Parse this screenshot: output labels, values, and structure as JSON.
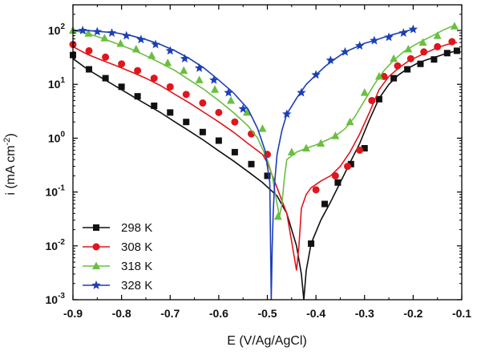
{
  "chart_data": {
    "type": "line",
    "xlabel": "E (V/Ag/AgCl)",
    "ylabel_prefix": "i (mA cm",
    "ylabel_sup": "-2",
    "ylabel_suffix": ")",
    "xlim": [
      -0.9,
      -0.1
    ],
    "ylim": [
      0.001,
      300
    ],
    "y_scale": "log",
    "x_ticks": [
      -0.9,
      -0.8,
      -0.7,
      -0.6,
      -0.5,
      -0.4,
      -0.3,
      -0.2,
      -0.1
    ],
    "x_tick_labels": [
      "-0.9",
      "-0.8",
      "-0.7",
      "-0.6",
      "-0.5",
      "-0.4",
      "-0.3",
      "-0.2",
      "-0.1"
    ],
    "y_ticks": [
      {
        "value": 0.001,
        "base": "10",
        "exp": "-3"
      },
      {
        "value": 0.01,
        "base": "10",
        "exp": "-2"
      },
      {
        "value": 0.1,
        "base": "10",
        "exp": "-1"
      },
      {
        "value": 1,
        "base": "10",
        "exp": "0"
      },
      {
        "value": 10,
        "base": "10",
        "exp": "1"
      },
      {
        "value": 100,
        "base": "10",
        "exp": "2"
      }
    ],
    "legend_position": "bottom-left",
    "series": [
      {
        "name": "298 K",
        "color": "#111111",
        "marker": "square",
        "x": [
          -0.9,
          -0.87,
          -0.84,
          -0.81,
          -0.78,
          -0.75,
          -0.72,
          -0.69,
          -0.66,
          -0.63,
          -0.6,
          -0.57,
          -0.54,
          -0.51,
          -0.48,
          -0.46,
          -0.44,
          -0.43,
          -0.425,
          -0.42,
          -0.41,
          -0.39,
          -0.37,
          -0.35,
          -0.33,
          -0.31,
          -0.29,
          -0.27,
          -0.25,
          -0.23,
          -0.21,
          -0.19,
          -0.17,
          -0.15,
          -0.13,
          -0.11
        ],
        "y": [
          30,
          19,
          13,
          9,
          6.2,
          4.3,
          3.0,
          2.0,
          1.35,
          0.9,
          0.58,
          0.38,
          0.24,
          0.15,
          0.085,
          0.04,
          0.01,
          0.003,
          0.001,
          0.0035,
          0.011,
          0.03,
          0.065,
          0.15,
          0.35,
          0.8,
          2.2,
          5.5,
          10,
          15,
          20,
          25,
          29,
          33,
          38,
          42
        ],
        "marker_x": [
          -0.9,
          -0.867,
          -0.833,
          -0.8,
          -0.767,
          -0.733,
          -0.7,
          -0.667,
          -0.633,
          -0.6,
          -0.567,
          -0.533,
          -0.5,
          -0.41,
          -0.382,
          -0.355,
          -0.328,
          -0.3,
          -0.27,
          -0.24,
          -0.212,
          -0.185,
          -0.157,
          -0.13,
          -0.11
        ],
        "marker_y": [
          35,
          19,
          13,
          9,
          6,
          4,
          3,
          2,
          1.3,
          0.9,
          0.55,
          0.33,
          0.2,
          0.011,
          0.06,
          0.15,
          0.33,
          0.65,
          5.3,
          13,
          19,
          24,
          29,
          38,
          42
        ]
      },
      {
        "name": "308 K",
        "color": "#e0161c",
        "marker": "circle",
        "x": [
          -0.9,
          -0.87,
          -0.84,
          -0.81,
          -0.78,
          -0.75,
          -0.72,
          -0.69,
          -0.66,
          -0.63,
          -0.6,
          -0.57,
          -0.54,
          -0.51,
          -0.5,
          -0.48,
          -0.46,
          -0.45,
          -0.44,
          -0.435,
          -0.43,
          -0.42,
          -0.41,
          -0.39,
          -0.37,
          -0.35,
          -0.33,
          -0.31,
          -0.29,
          -0.27,
          -0.25,
          -0.23,
          -0.21,
          -0.19,
          -0.17,
          -0.15,
          -0.13,
          -0.11
        ],
        "y": [
          50,
          36,
          28,
          22,
          17,
          13,
          9.5,
          6.5,
          4.5,
          3.0,
          2.0,
          1.3,
          0.8,
          0.5,
          0.35,
          0.12,
          0.04,
          0.012,
          0.0035,
          0.01,
          0.05,
          0.09,
          0.12,
          0.16,
          0.2,
          0.3,
          0.55,
          1.2,
          3.0,
          8,
          14,
          20,
          27,
          33,
          40,
          48,
          55,
          60
        ],
        "marker_x": [
          -0.9,
          -0.867,
          -0.833,
          -0.8,
          -0.767,
          -0.733,
          -0.7,
          -0.667,
          -0.633,
          -0.6,
          -0.567,
          -0.533,
          -0.5,
          -0.4,
          -0.36,
          -0.335,
          -0.31,
          -0.285,
          -0.26,
          -0.232,
          -0.205,
          -0.178,
          -0.15,
          -0.12
        ],
        "marker_y": [
          55,
          42,
          32,
          24,
          18,
          13,
          9,
          6.5,
          4.5,
          3,
          2,
          1.2,
          0.5,
          0.11,
          0.2,
          0.3,
          0.6,
          5,
          14,
          22,
          30,
          40,
          50,
          62
        ]
      },
      {
        "name": "318 K",
        "color": "#6abf3f",
        "marker": "triangle",
        "x": [
          -0.9,
          -0.87,
          -0.84,
          -0.81,
          -0.78,
          -0.75,
          -0.72,
          -0.69,
          -0.66,
          -0.63,
          -0.6,
          -0.57,
          -0.54,
          -0.52,
          -0.5,
          -0.49,
          -0.48,
          -0.475,
          -0.47,
          -0.465,
          -0.46,
          -0.44,
          -0.42,
          -0.4,
          -0.38,
          -0.36,
          -0.34,
          -0.32,
          -0.3,
          -0.28,
          -0.26,
          -0.24,
          -0.22,
          -0.2,
          -0.18,
          -0.16,
          -0.14,
          -0.12
        ],
        "y": [
          100,
          88,
          72,
          57,
          45,
          34,
          25,
          18,
          12,
          8,
          5,
          3,
          1.7,
          1.0,
          0.4,
          0.2,
          0.06,
          0.035,
          0.06,
          0.18,
          0.4,
          0.55,
          0.65,
          0.75,
          0.9,
          1.1,
          1.5,
          2.5,
          5,
          10,
          18,
          28,
          40,
          52,
          65,
          80,
          100,
          120
        ],
        "marker_x": [
          -0.9,
          -0.868,
          -0.835,
          -0.802,
          -0.77,
          -0.738,
          -0.705,
          -0.672,
          -0.64,
          -0.608,
          -0.575,
          -0.542,
          -0.51,
          -0.478,
          -0.45,
          -0.42,
          -0.39,
          -0.36,
          -0.33,
          -0.3,
          -0.27,
          -0.24,
          -0.21,
          -0.18,
          -0.15,
          -0.115
        ],
        "marker_y": [
          100,
          88,
          72,
          57,
          45,
          34,
          25,
          18,
          12,
          8,
          5,
          3,
          1.5,
          0.035,
          0.55,
          0.65,
          0.8,
          1.1,
          2,
          7,
          14,
          30,
          45,
          60,
          80,
          120
        ]
      },
      {
        "name": "328 K",
        "color": "#1c3fb5",
        "marker": "star",
        "x": [
          -0.9,
          -0.87,
          -0.84,
          -0.81,
          -0.78,
          -0.75,
          -0.72,
          -0.69,
          -0.66,
          -0.63,
          -0.6,
          -0.57,
          -0.54,
          -0.52,
          -0.505,
          -0.495,
          -0.492,
          -0.49,
          -0.488,
          -0.485,
          -0.48,
          -0.47,
          -0.46,
          -0.44,
          -0.42,
          -0.4,
          -0.38,
          -0.36,
          -0.34,
          -0.32,
          -0.3,
          -0.28,
          -0.26,
          -0.24,
          -0.22,
          -0.2
        ],
        "y": [
          100,
          100,
          95,
          90,
          80,
          68,
          55,
          42,
          30,
          20,
          12,
          7,
          3.5,
          1.5,
          0.6,
          0.15,
          0.001,
          0.01,
          0.04,
          0.15,
          0.5,
          1.4,
          2.8,
          5.5,
          10,
          15,
          22,
          30,
          40,
          48,
          58,
          65,
          75,
          85,
          95,
          105
        ],
        "marker_x": [
          -0.88,
          -0.85,
          -0.82,
          -0.79,
          -0.76,
          -0.73,
          -0.7,
          -0.67,
          -0.64,
          -0.61,
          -0.58,
          -0.55,
          -0.46,
          -0.43,
          -0.4,
          -0.37,
          -0.34,
          -0.31,
          -0.28,
          -0.25,
          -0.22,
          -0.2
        ],
        "marker_y": [
          100,
          95,
          90,
          80,
          68,
          55,
          42,
          30,
          20,
          12,
          7,
          3.5,
          2.8,
          7,
          15,
          28,
          40,
          52,
          65,
          75,
          90,
          105
        ]
      }
    ]
  }
}
